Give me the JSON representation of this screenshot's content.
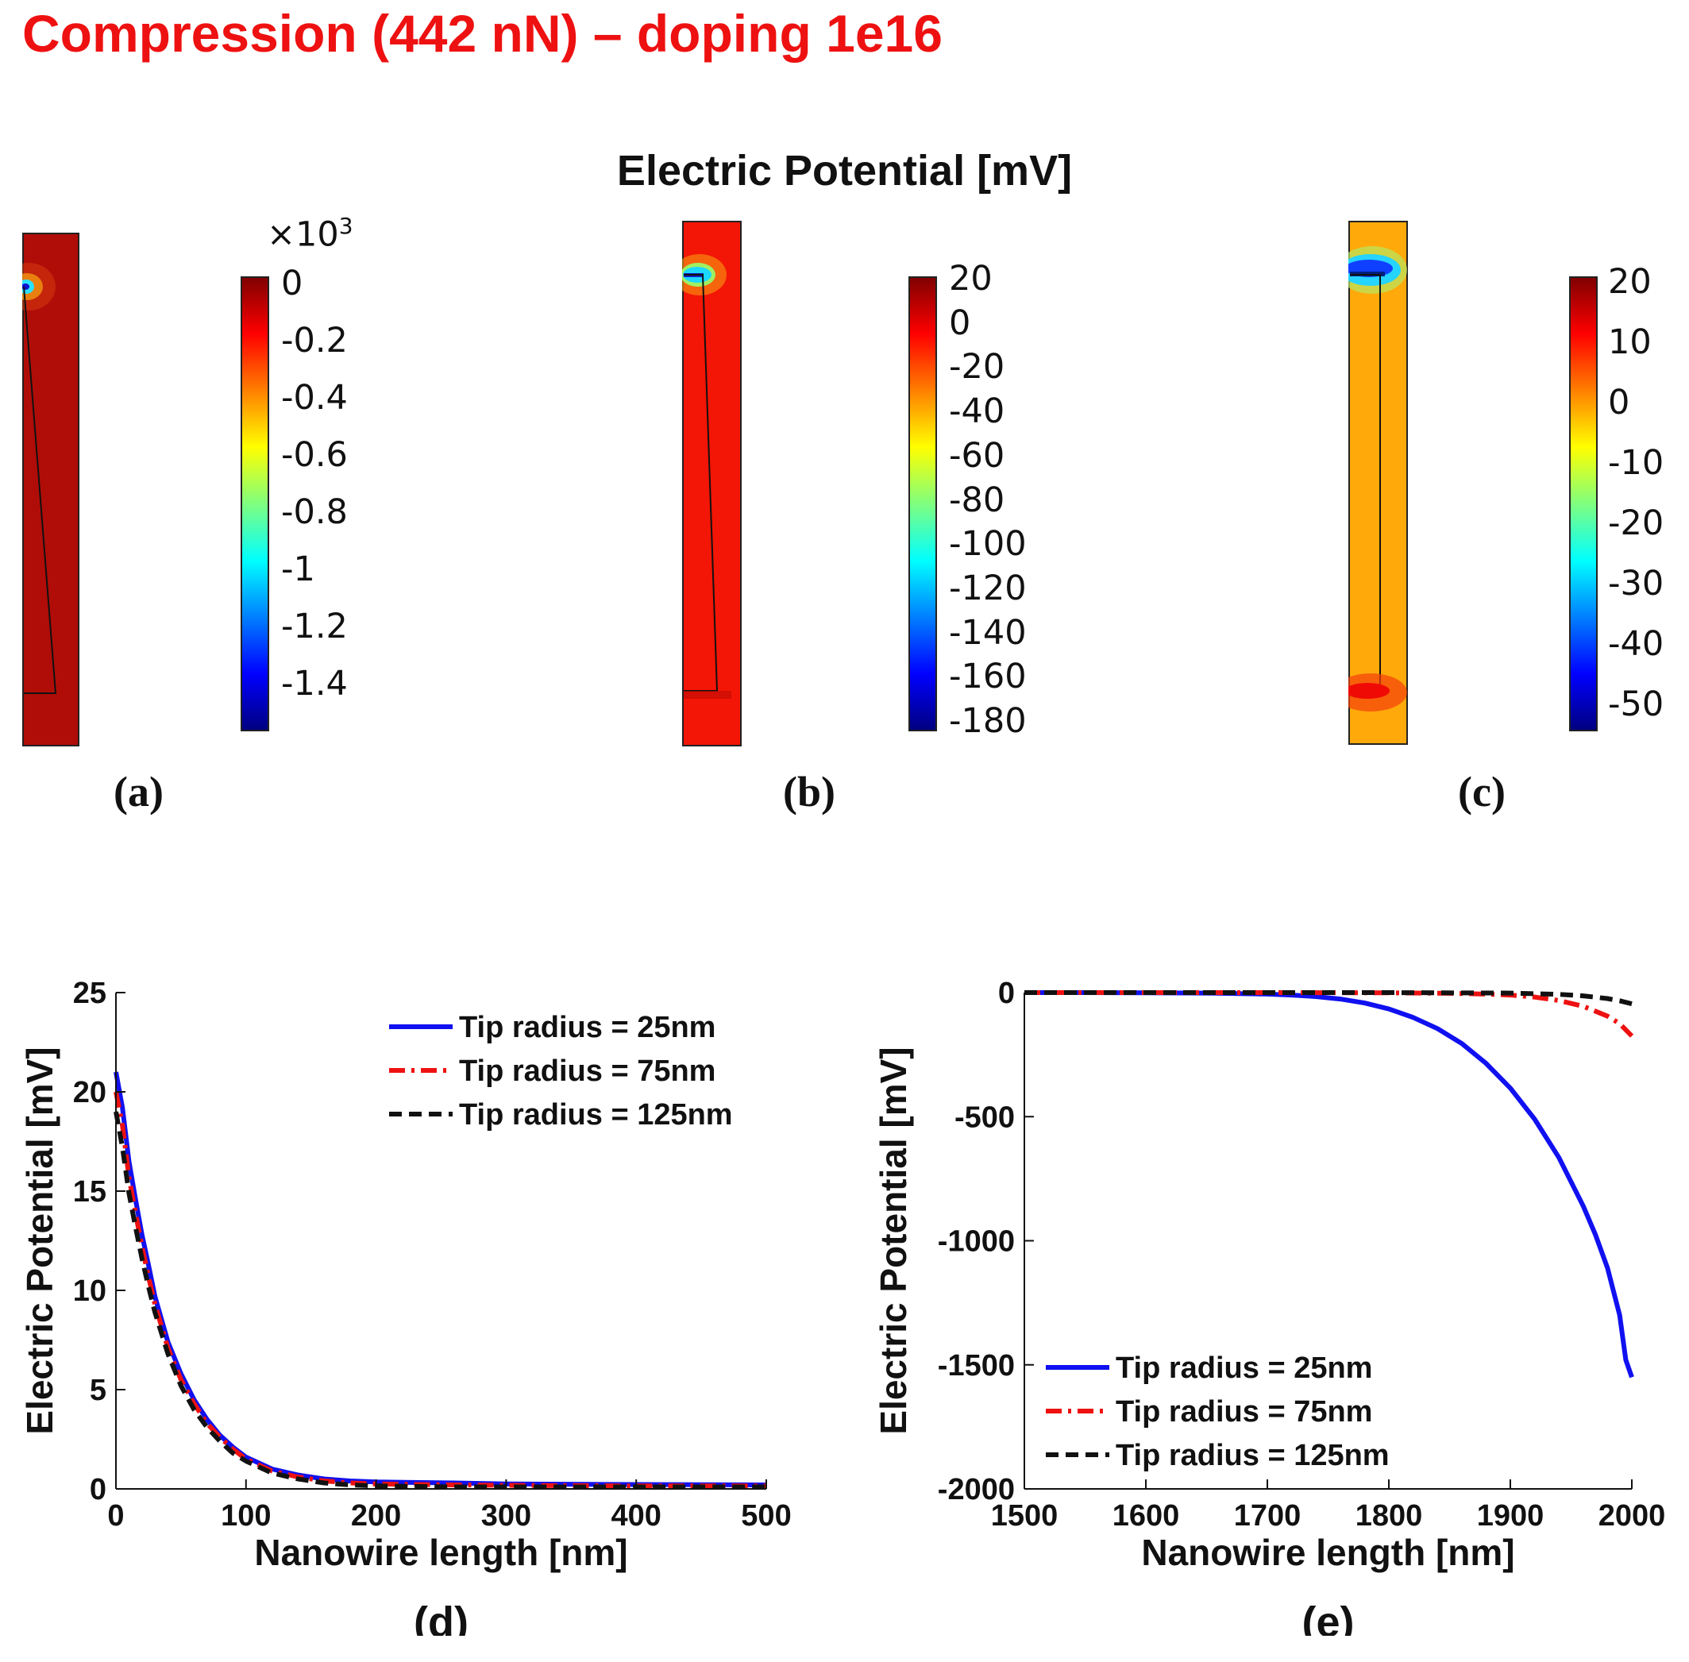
{
  "title": "Compression (442 nN) – doping 1e16",
  "maintitle": "Electric Potential  [mV]",
  "colorbar_gradient": [
    "#00007f",
    "#0000ff",
    "#007fff",
    "#00ffff",
    "#7fff7f",
    "#ffff00",
    "#ff7f00",
    "#ff0000",
    "#7f0000"
  ],
  "maps": [
    {
      "label": "(a)",
      "multiplier_base": "×10",
      "multiplier_exp": "3",
      "ticks": [
        "0",
        "-0.2",
        "-0.4",
        "-0.6",
        "-0.8",
        "-1",
        "-1.2",
        "-1.4"
      ],
      "fill": "#b00d08"
    },
    {
      "label": "(b)",
      "ticks": [
        "20",
        "0",
        "-20",
        "-40",
        "-60",
        "-80",
        "-100",
        "-120",
        "-140",
        "-160",
        "-180"
      ],
      "fill": "#f31505"
    },
    {
      "label": "(c)",
      "ticks": [
        "20",
        "10",
        "0",
        "-10",
        "-20",
        "-30",
        "-40",
        "-50"
      ],
      "fill": "#ffa90a"
    }
  ],
  "chart_data": [
    {
      "type": "line",
      "label": "(d)",
      "xlabel": "Nanowire length [nm]",
      "ylabel": "Electric Potential [mV]",
      "xlim": [
        0,
        500
      ],
      "ylim": [
        0,
        25
      ],
      "xticks": [
        0,
        100,
        200,
        300,
        400,
        500
      ],
      "yticks": [
        0,
        5,
        10,
        15,
        20,
        25
      ],
      "xtick_labels": [
        "0",
        "100",
        "200",
        "300",
        "400",
        "500"
      ],
      "ytick_labels": [
        "0",
        "5",
        "10",
        "15",
        "20",
        "25"
      ],
      "legend_position": "top-right",
      "series": [
        {
          "name": "Tip radius = 25nm",
          "color": "#1010f0",
          "dash": "none",
          "x": [
            0,
            5,
            10,
            15,
            20,
            25,
            30,
            40,
            50,
            60,
            70,
            80,
            90,
            100,
            120,
            140,
            160,
            180,
            200,
            260,
            300,
            400,
            500
          ],
          "y": [
            21,
            19.2,
            16.5,
            14.6,
            12.8,
            11.3,
            9.7,
            7.4,
            5.8,
            4.5,
            3.5,
            2.7,
            2.1,
            1.6,
            1.0,
            0.7,
            0.5,
            0.4,
            0.35,
            0.3,
            0.25,
            0.22,
            0.2
          ]
        },
        {
          "name": "Tip radius = 75nm",
          "color": "#ee1111",
          "dash": "20,8,4,8",
          "x": [
            0,
            5,
            10,
            15,
            20,
            25,
            30,
            40,
            50,
            60,
            70,
            80,
            90,
            100,
            120,
            140,
            160,
            180,
            200,
            260,
            300,
            400,
            500
          ],
          "y": [
            20,
            18.3,
            15.7,
            13.9,
            12.2,
            10.7,
            9.3,
            7.1,
            5.5,
            4.3,
            3.3,
            2.6,
            2.0,
            1.5,
            0.9,
            0.6,
            0.4,
            0.3,
            0.25,
            0.2,
            0.18,
            0.15,
            0.15
          ]
        },
        {
          "name": "Tip radius = 125nm",
          "color": "#111111",
          "dash": "16,9",
          "x": [
            0,
            5,
            10,
            15,
            20,
            25,
            30,
            40,
            50,
            60,
            70,
            80,
            90,
            100,
            120,
            140,
            160,
            180,
            200,
            260,
            300,
            400,
            500
          ],
          "y": [
            19,
            17.2,
            14.9,
            13.2,
            11.6,
            10.2,
            8.9,
            6.8,
            5.2,
            4.0,
            3.1,
            2.4,
            1.8,
            1.4,
            0.8,
            0.5,
            0.3,
            0.2,
            0.15,
            0.1,
            0.1,
            0.1,
            0.1
          ]
        }
      ]
    },
    {
      "type": "line",
      "label": "(e)",
      "xlabel": "Nanowire length [nm]",
      "ylabel": "Electric Potential [mV]",
      "xlim": [
        1500,
        2000
      ],
      "ylim": [
        -2000,
        0
      ],
      "xticks": [
        1500,
        1600,
        1700,
        1800,
        1900,
        2000
      ],
      "yticks": [
        0,
        -500,
        -1000,
        -1500,
        -2000
      ],
      "xtick_labels": [
        "1500",
        "1600",
        "1700",
        "1800",
        "1900",
        "2000"
      ],
      "ytick_labels": [
        "0",
        "-500",
        "-1000",
        "-1500",
        "-2000"
      ],
      "legend_position": "bottom-left",
      "series": [
        {
          "name": "Tip radius = 25nm",
          "color": "#1010f0",
          "dash": "none",
          "x": [
            1500,
            1550,
            1600,
            1650,
            1700,
            1720,
            1740,
            1760,
            1780,
            1800,
            1820,
            1840,
            1860,
            1880,
            1900,
            1920,
            1940,
            1960,
            1970,
            1980,
            1990,
            1995,
            2000
          ],
          "y": [
            0,
            0,
            -1,
            -2,
            -6,
            -10,
            -16,
            -26,
            -42,
            -66,
            -100,
            -145,
            -205,
            -285,
            -385,
            -510,
            -665,
            -860,
            -975,
            -1110,
            -1300,
            -1480,
            -1550
          ]
        },
        {
          "name": "Tip radius = 75nm",
          "color": "#ee1111",
          "dash": "20,8,4,8",
          "x": [
            1500,
            1600,
            1700,
            1800,
            1850,
            1880,
            1900,
            1920,
            1940,
            1960,
            1980,
            1990,
            2000
          ],
          "y": [
            0,
            0,
            0,
            -1,
            -3,
            -6,
            -10,
            -18,
            -32,
            -55,
            -95,
            -125,
            -175
          ]
        },
        {
          "name": "Tip radius = 125nm",
          "color": "#111111",
          "dash": "16,9",
          "x": [
            1500,
            1600,
            1700,
            1800,
            1900,
            1940,
            1960,
            1980,
            1990,
            2000
          ],
          "y": [
            0,
            0,
            0,
            0,
            -2,
            -7,
            -13,
            -24,
            -33,
            -45
          ]
        }
      ]
    }
  ]
}
